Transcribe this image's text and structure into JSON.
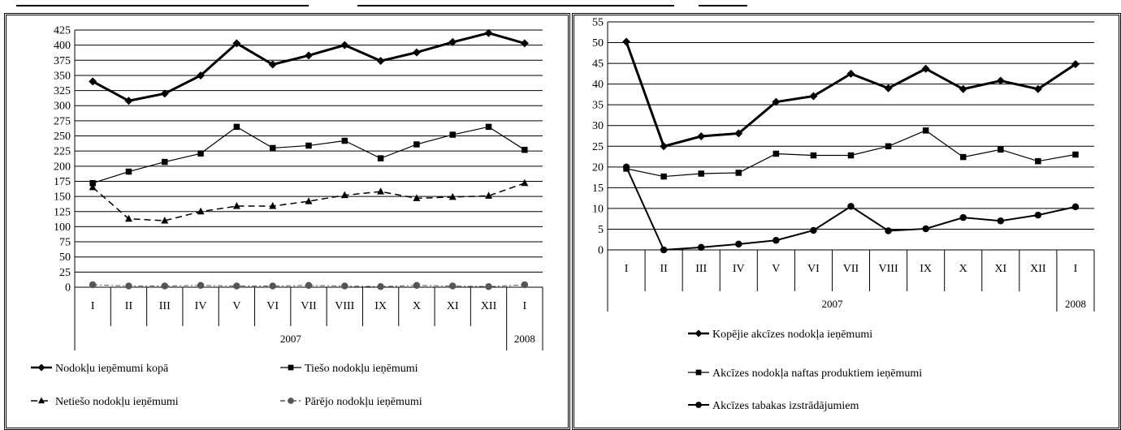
{
  "charts": [
    {
      "id": "left",
      "type": "line",
      "ylim": [
        0,
        425
      ],
      "ystep": 25,
      "months": [
        "I",
        "II",
        "III",
        "IV",
        "V",
        "VI",
        "VII",
        "VIII",
        "IX",
        "X",
        "XI",
        "XII",
        "I"
      ],
      "years": [
        {
          "label": "2007",
          "span": 12
        },
        {
          "label": "2008",
          "span": 1
        }
      ],
      "series": [
        {
          "name": "Nodokļu ieņēmumi kopā",
          "marker": "diamond",
          "width": 3,
          "dash": "",
          "values": [
            340,
            308,
            320,
            350,
            403,
            368,
            383,
            400,
            374,
            388,
            405,
            420,
            403
          ]
        },
        {
          "name": "Tiešo nodokļu ieņēmumi",
          "marker": "square",
          "width": 1.2,
          "dash": "",
          "values": [
            172,
            191,
            207,
            221,
            265,
            230,
            234,
            242,
            213,
            236,
            252,
            265,
            227
          ]
        },
        {
          "name": "Netiešo nodokļu ieņēmumi",
          "marker": "triangle",
          "width": 1.5,
          "dash": "8,5",
          "values": [
            165,
            113,
            110,
            125,
            134,
            134,
            142,
            152,
            158,
            147,
            149,
            151,
            172
          ]
        },
        {
          "name": "Pārējo nodokļu ieņēmumi",
          "marker": "circle",
          "width": 1,
          "dash": "6,3,2,3",
          "values": [
            4,
            2,
            2,
            3,
            2,
            2,
            3,
            2,
            1,
            3,
            2,
            1,
            4
          ]
        }
      ]
    },
    {
      "id": "right",
      "type": "line",
      "ylim": [
        0,
        55
      ],
      "ystep": 5,
      "months": [
        "I",
        "II",
        "III",
        "IV",
        "V",
        "VI",
        "VII",
        "VIII",
        "IX",
        "X",
        "XI",
        "XII",
        "I"
      ],
      "years": [
        {
          "label": "2007",
          "span": 12
        },
        {
          "label": "2008",
          "span": 1
        }
      ],
      "series": [
        {
          "name": "Kopējie akcīzes nodokļa ieņēmumi",
          "marker": "diamond",
          "width": 3,
          "dash": "",
          "values": [
            50.2,
            25,
            27.4,
            28.1,
            35.7,
            37.1,
            42.5,
            39,
            43.7,
            38.8,
            40.8,
            38.8,
            44.8
          ]
        },
        {
          "name": "Akcīzes nodokļa naftas produktiem ieņēmumi",
          "marker": "square",
          "width": 1.2,
          "dash": "",
          "values": [
            19.6,
            17.7,
            18.4,
            18.6,
            23.2,
            22.8,
            22.8,
            25,
            28.8,
            22.4,
            24.2,
            21.4,
            23
          ]
        },
        {
          "name": "Akcīzes tabakas izstrādājumiem",
          "marker": "circle",
          "width": 2,
          "dash": "",
          "values": [
            20,
            0,
            0.6,
            1.4,
            2.3,
            4.7,
            10.5,
            4.6,
            5.1,
            7.8,
            7,
            8.4,
            10.4
          ]
        }
      ]
    }
  ]
}
